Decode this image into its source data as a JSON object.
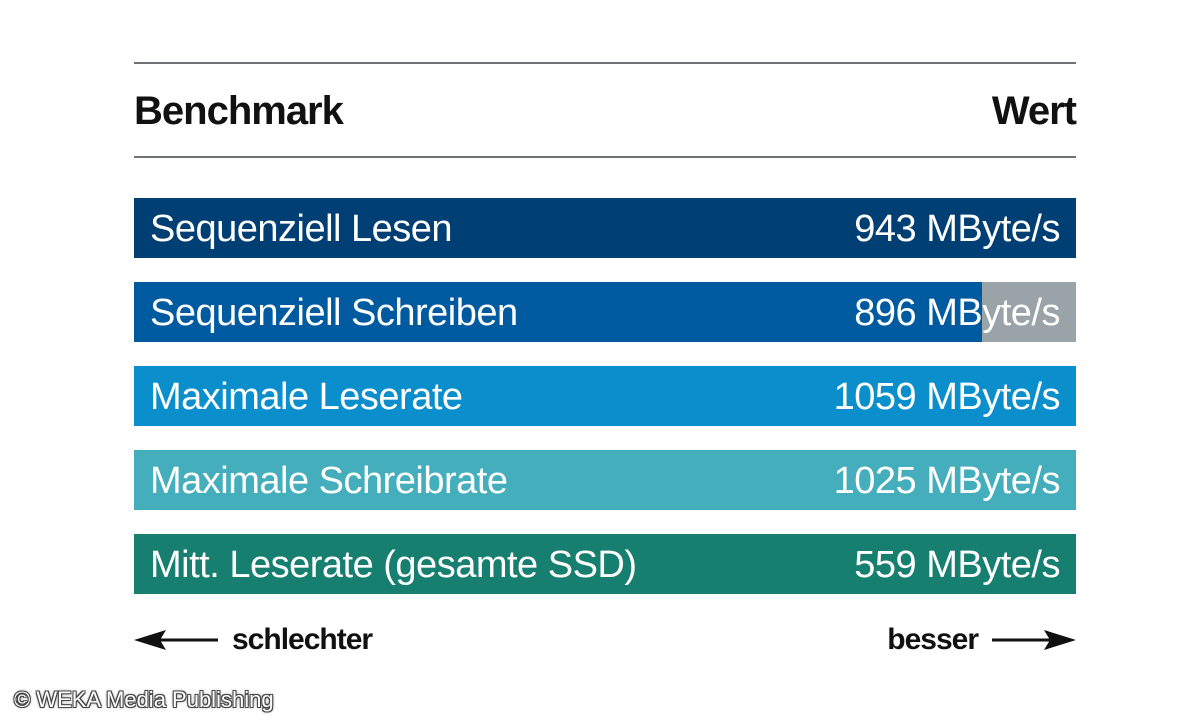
{
  "header": {
    "left": "Benchmark",
    "right": "Wert"
  },
  "chart_data": {
    "type": "bar",
    "orientation": "horizontal",
    "categories": [
      "Sequenziell Lesen",
      "Sequenziell Schreiben",
      "Maximale Leserate",
      "Maximale Schreibrate",
      "Mitt. Leserate (gesamte SSD)"
    ],
    "values": [
      943,
      896,
      1059,
      1025,
      559
    ],
    "value_labels": [
      "943 MByte/s",
      "896 MByte/s",
      "1059 MByte/s",
      "1025 MByte/s",
      "559 MByte/s"
    ],
    "fill_fraction": [
      1.0,
      0.9,
      1.0,
      1.0,
      1.0
    ],
    "colors": [
      "#003f74",
      "#005aa0",
      "#0b8fcc",
      "#45aebc",
      "#177f70"
    ],
    "unit": "MByte/s",
    "title": "",
    "xlabel": "",
    "ylabel": ""
  },
  "legend": {
    "worse": "schlechter",
    "better": "besser"
  },
  "footer": {
    "copyright": "© WEKA Media Publishing"
  }
}
